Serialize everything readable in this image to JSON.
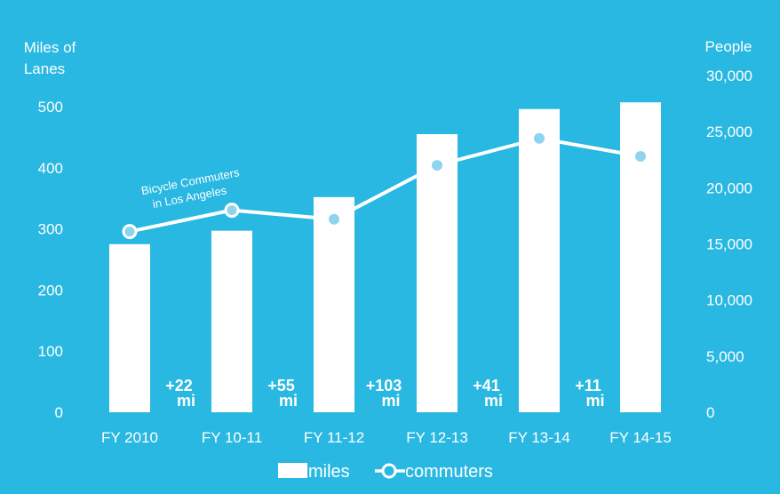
{
  "chart_data": {
    "type": "bar",
    "categories": [
      "FY 2010",
      "FY 10-11",
      "FY 11-12",
      "FY 12-13",
      "FY 13-14",
      "FY 14-15"
    ],
    "series": [
      {
        "name": "miles",
        "type": "bar",
        "axis": "left",
        "values": [
          275,
          297,
          352,
          455,
          496,
          507
        ]
      },
      {
        "name": "commuters",
        "type": "line",
        "axis": "right",
        "values": [
          16100,
          18000,
          17200,
          22000,
          24400,
          22800
        ]
      }
    ],
    "left_axis": {
      "label_line1": "Miles of",
      "label_line2": "Lanes",
      "range": [
        0,
        500
      ],
      "ticks": [
        "0",
        "100",
        "200",
        "300",
        "400",
        "500"
      ]
    },
    "right_axis": {
      "label": "People",
      "range": [
        0,
        30000
      ],
      "ticks": [
        "0",
        "5,000",
        "10,000",
        "15,000",
        "20,000",
        "25,000",
        "30,000"
      ]
    },
    "increments": [
      {
        "top": "+22",
        "bottom": "mi"
      },
      {
        "top": "+55",
        "bottom": "mi"
      },
      {
        "top": "+103",
        "bottom": "mi"
      },
      {
        "top": "+41",
        "bottom": "mi"
      },
      {
        "top": "+11",
        "bottom": "mi"
      }
    ],
    "annotation": {
      "line1": "Bicycle Commuters",
      "line2": "in Los Angeles"
    },
    "legend": {
      "miles": "miles",
      "commuters": "commuters",
      "position": "bottom-center"
    },
    "grid": false,
    "colors": {
      "background": "#29b8e2",
      "bars": "#ffffff",
      "line": "#ffffff",
      "points_fill": "#8fd4ee",
      "hollow_fill": "#29b8e2"
    }
  }
}
